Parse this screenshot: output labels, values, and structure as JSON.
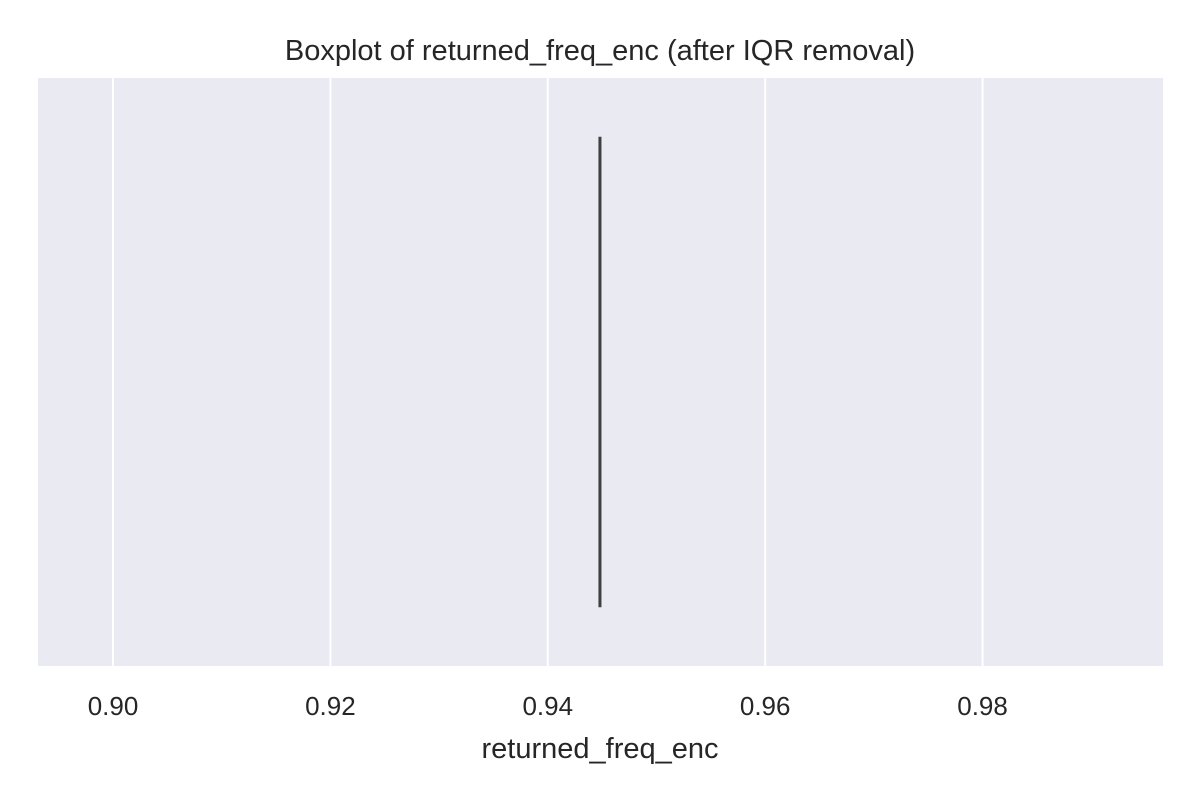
{
  "chart_data": {
    "type": "boxplot",
    "orientation": "horizontal",
    "title": "Boxplot of returned_freq_enc (after IQR removal)",
    "xlabel": "returned_freq_enc",
    "ylabel": "",
    "xlim": [
      0.8931,
      0.9966
    ],
    "xticks": [
      0.9,
      0.92,
      0.94,
      0.96,
      0.98
    ],
    "xtick_labels": [
      "0.90",
      "0.92",
      "0.94",
      "0.96",
      "0.98"
    ],
    "grid": true,
    "legend": "none",
    "boxes": [
      {
        "min": 0.9448,
        "q1": 0.9448,
        "median": 0.9448,
        "q3": 0.9448,
        "max": 0.9448,
        "outliers": []
      }
    ],
    "colors": {
      "plot_background": "#eaeaf2",
      "grid": "#ffffff",
      "box_line": "#3f3f3f",
      "text": "#262626"
    }
  }
}
